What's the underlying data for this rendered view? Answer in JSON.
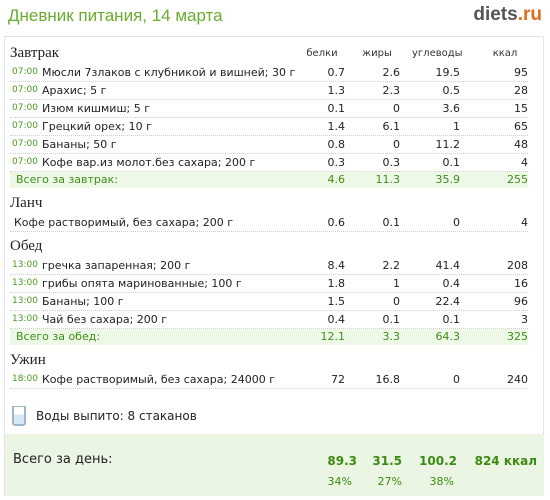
{
  "header": {
    "title": "Дневник питания, 14 марта",
    "logo_name": "diets",
    "logo_dot": ".",
    "logo_tld": "ru"
  },
  "columns": {
    "protein": "белки",
    "fat": "жиры",
    "carbs": "углеводы",
    "kcal": "ккал"
  },
  "breakfast": {
    "title": "Завтрак",
    "items": [
      {
        "time": "07:00",
        "food": "Мюсли 7злаков с клубникой и вишней; 30 г",
        "p": "0.7",
        "f": "2.6",
        "c": "19.5",
        "k": "95"
      },
      {
        "time": "07:00",
        "food": "Арахис; 5 г",
        "p": "1.3",
        "f": "2.3",
        "c": "0.5",
        "k": "28"
      },
      {
        "time": "07:00",
        "food": "Изюм кишмиш; 5 г",
        "p": "0.1",
        "f": "0",
        "c": "3.6",
        "k": "15"
      },
      {
        "time": "07:00",
        "food": "Грецкий орех; 10 г",
        "p": "1.4",
        "f": "6.1",
        "c": "1",
        "k": "65"
      },
      {
        "time": "07:00",
        "food": "Бананы; 50 г",
        "p": "0.8",
        "f": "0",
        "c": "11.2",
        "k": "48"
      },
      {
        "time": "07:00",
        "food": "Кофе вар.из молот.без сахара; 200 г",
        "p": "0.3",
        "f": "0.3",
        "c": "0.1",
        "k": "4"
      }
    ],
    "total": {
      "label": "Всего за завтрак:",
      "p": "4.6",
      "f": "11.3",
      "c": "35.9",
      "k": "255"
    }
  },
  "lunch": {
    "title": "Ланч",
    "items": [
      {
        "time": "",
        "food": "Кофе растворимый, без сахара; 200 г",
        "p": "0.6",
        "f": "0.1",
        "c": "0",
        "k": "4"
      }
    ]
  },
  "dinner": {
    "title": "Обед",
    "items": [
      {
        "time": "13:00",
        "food": "гречка запаренная; 200 г",
        "p": "8.4",
        "f": "2.2",
        "c": "41.4",
        "k": "208"
      },
      {
        "time": "13:00",
        "food": "грибы опята маринованные; 100 г",
        "p": "1.8",
        "f": "1",
        "c": "0.4",
        "k": "16"
      },
      {
        "time": "13:00",
        "food": "Бананы; 100 г",
        "p": "1.5",
        "f": "0",
        "c": "22.4",
        "k": "96"
      },
      {
        "time": "13:00",
        "food": "Чай без сахара; 200 г",
        "p": "0.4",
        "f": "0.1",
        "c": "0.1",
        "k": "3"
      }
    ],
    "total": {
      "label": "Всего за обед:",
      "p": "12.1",
      "f": "3.3",
      "c": "64.3",
      "k": "325"
    }
  },
  "supper": {
    "title": "Ужин",
    "items": [
      {
        "time": "18:00",
        "food": "Кофе растворимый, без сахара; 24000 г",
        "p": "72",
        "f": "16.8",
        "c": "0",
        "k": "240"
      }
    ]
  },
  "water": {
    "text": "Воды выпито: 8 стаканов"
  },
  "day_total": {
    "label": "Всего за день:",
    "protein": "89.3",
    "fat": "31.5",
    "carbs": "100.2",
    "kcal": "824 ккал",
    "protein_pct": "34%",
    "fat_pct": "27%",
    "carbs_pct": "38%"
  }
}
